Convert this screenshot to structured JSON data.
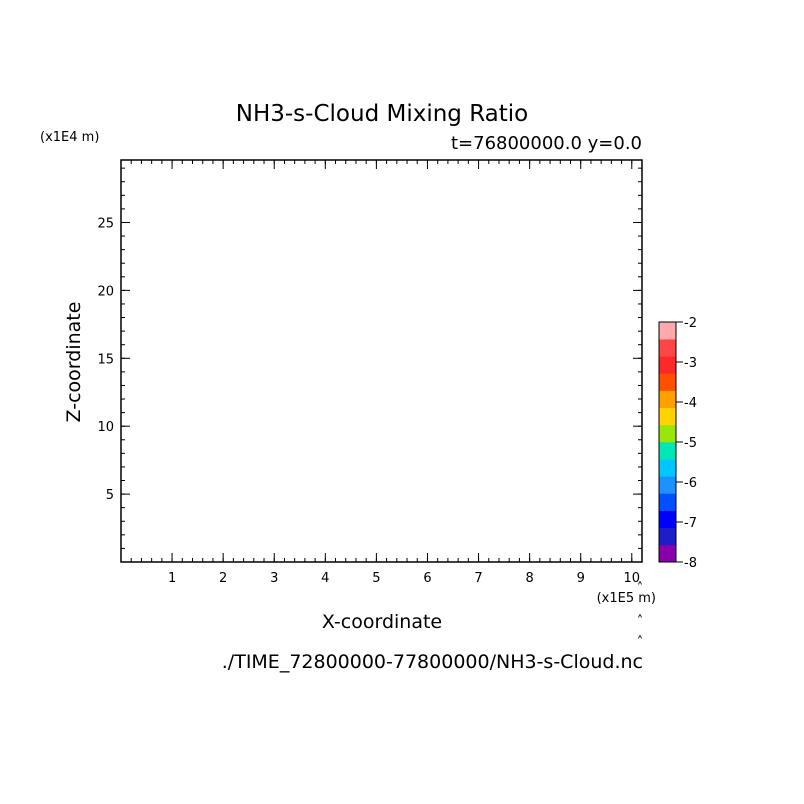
{
  "chart_data": {
    "type": "heatmap",
    "title": "NH3-s-Cloud Mixing Ratio",
    "subtitle": "t=76800000.0 y=0.0",
    "xlabel": "X-coordinate",
    "ylabel": "Z-coordinate",
    "x_unit": "(x1E5 m)",
    "y_unit": "(x1E4 m)",
    "xlim": [
      0,
      10.2
    ],
    "ylim": [
      0,
      29.6
    ],
    "x_ticks": [
      1,
      2,
      3,
      4,
      5,
      6,
      7,
      8,
      9,
      10
    ],
    "y_ticks": [
      5,
      10,
      15,
      20,
      25
    ],
    "x_minor_step": 0.2,
    "y_minor_step": 1,
    "values": [],
    "colorbar": {
      "levels": [
        -8,
        -7.5,
        -7,
        -6.5,
        -6,
        -5.5,
        -5,
        -4.5,
        -4,
        -3.5,
        -3,
        -2.5,
        -2
      ],
      "colors": [
        "#8800aa",
        "#1e1ec8",
        "#0000ff",
        "#0050ff",
        "#1e90ff",
        "#00c8ff",
        "#00e6b4",
        "#9be60a",
        "#ffd200",
        "#ffa000",
        "#ff5000",
        "#ff2828",
        "#ff4646",
        "#ffaaaa"
      ],
      "tick_labels": [
        "-8",
        "-7",
        "-6",
        "-5",
        "-4",
        "-3",
        "-2"
      ],
      "tick_values": [
        -8,
        -7,
        -6,
        -5,
        -4,
        -3,
        -2
      ]
    },
    "footer": "./TIME_72800000-77800000/NH3-s-Cloud.nc"
  }
}
